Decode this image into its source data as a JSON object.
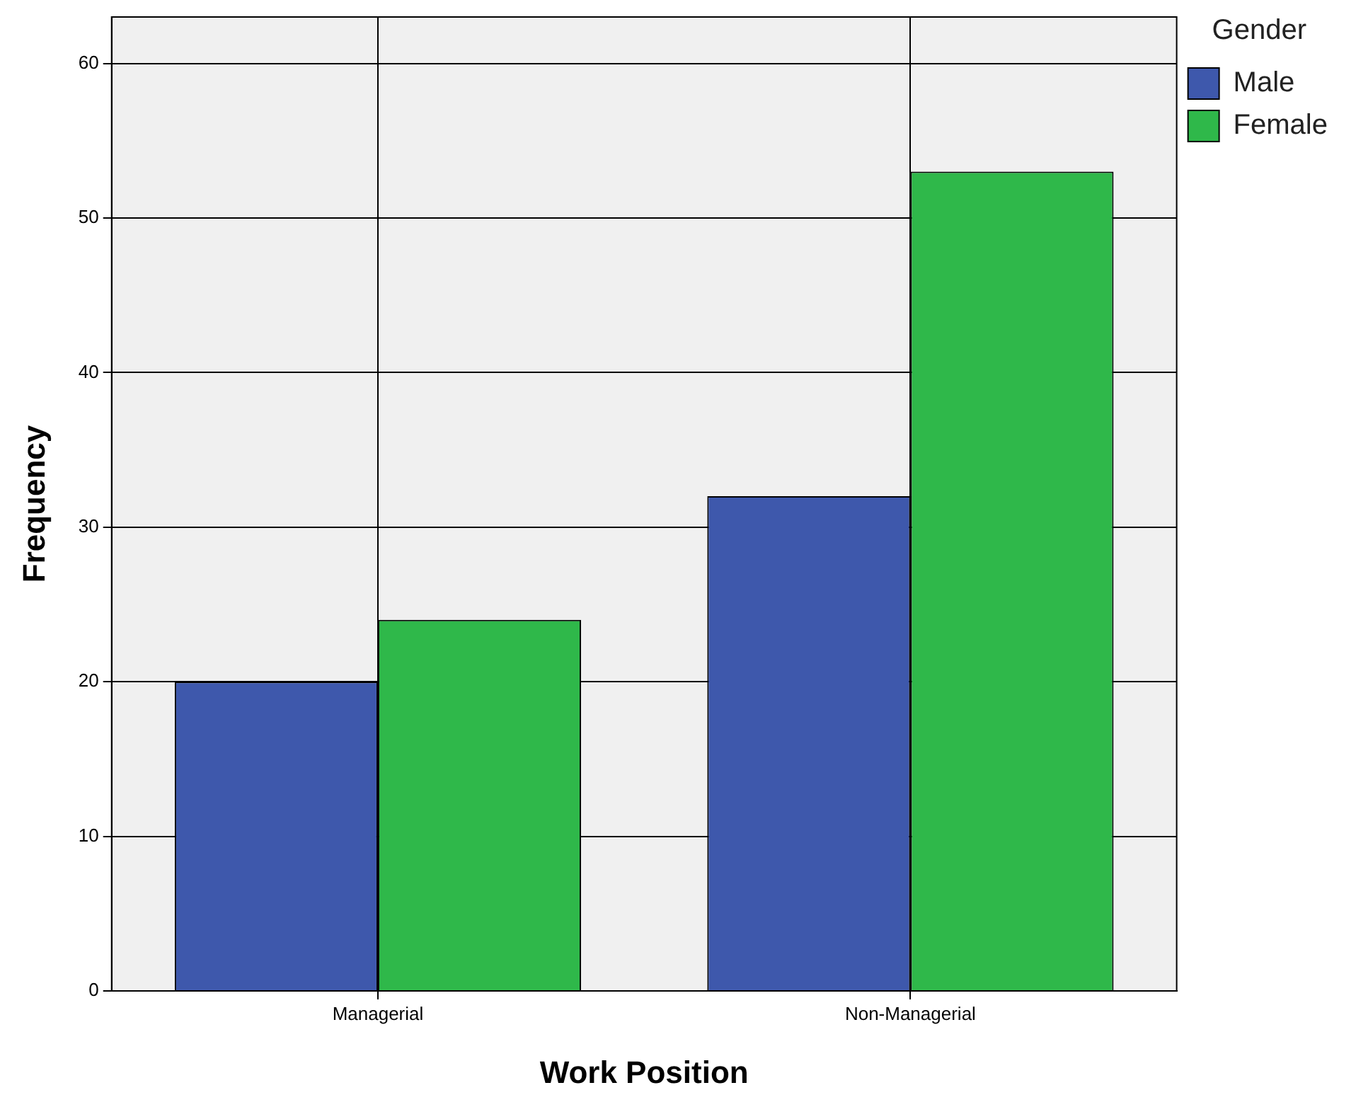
{
  "chart_data": {
    "type": "bar",
    "xlabel": "Work Position",
    "ylabel": "Frequency",
    "legend_title": "Gender",
    "categories": [
      "Managerial",
      "Non-Managerial"
    ],
    "series": [
      {
        "name": "Male",
        "color": "#3e58ac",
        "values": [
          20,
          32
        ]
      },
      {
        "name": "Female",
        "color": "#2fb84a",
        "values": [
          24,
          53
        ]
      }
    ],
    "ylim": [
      0,
      63
    ],
    "yticks": [
      0,
      10,
      20,
      30,
      40,
      50,
      60
    ],
    "grid": true,
    "legend": "top right"
  }
}
